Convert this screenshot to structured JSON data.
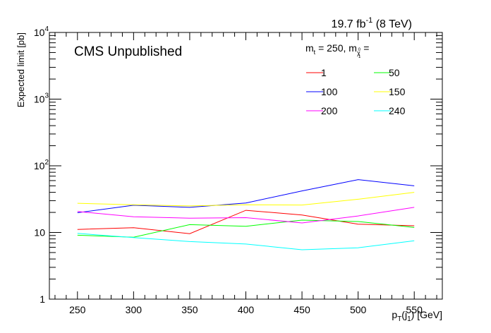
{
  "chart_data": {
    "type": "line",
    "lumi_label": {
      "pre": "19.7 fb",
      "sup": "-1",
      "post": " (8 TeV)"
    },
    "cms_label": "CMS Unpublished",
    "xlabel": {
      "pre": "p",
      "sub1": "T",
      "mid": "(j",
      "sub2": "1",
      "post": ") [GeV]"
    },
    "ylabel": "Expected limit [pb]",
    "xlim": [
      225,
      575
    ],
    "ylim": [
      1,
      10000
    ],
    "yscale": "log",
    "x": [
      250,
      300,
      350,
      400,
      450,
      500,
      550
    ],
    "x_tick_labels": [
      "250",
      "300",
      "350",
      "400",
      "450",
      "500",
      "550"
    ],
    "y_tick_labels": [
      {
        "value": 1,
        "base": "1",
        "exp": ""
      },
      {
        "value": 10,
        "base": "10",
        "exp": ""
      },
      {
        "value": 100,
        "base": "10",
        "exp": "2"
      },
      {
        "value": 1000,
        "base": "10",
        "exp": "3"
      },
      {
        "value": 10000,
        "base": "10",
        "exp": "4"
      }
    ],
    "legend": {
      "position": "top-right",
      "header": {
        "m_stop": "m",
        "stop_sub": "t",
        "value": " = 250, m",
        "chi_sub": "χ",
        "chi_sup": "0",
        "chi_sub2": "1",
        "eq": " ="
      }
    },
    "series": [
      {
        "name": "1",
        "color": "#ff0000",
        "values": [
          11.1,
          11.8,
          9.6,
          21.5,
          18.3,
          13.3,
          12.6
        ]
      },
      {
        "name": "50",
        "color": "#00ff00",
        "values": [
          9.1,
          8.5,
          13.1,
          12.4,
          15.3,
          14.6,
          11.9
        ]
      },
      {
        "name": "100",
        "color": "#0000ff",
        "values": [
          19.8,
          25.6,
          23.8,
          27.7,
          42.0,
          62.0,
          50.0
        ]
      },
      {
        "name": "150",
        "color": "#ffff00",
        "values": [
          27.4,
          26.0,
          25.0,
          26.0,
          25.8,
          31.5,
          40.0
        ]
      },
      {
        "name": "200",
        "color": "#ff00ff",
        "values": [
          20.6,
          17.2,
          16.4,
          16.7,
          13.9,
          17.7,
          23.8
        ]
      },
      {
        "name": "240",
        "color": "#00ffff",
        "values": [
          9.7,
          8.4,
          7.3,
          6.7,
          5.5,
          5.9,
          7.5
        ]
      }
    ]
  }
}
